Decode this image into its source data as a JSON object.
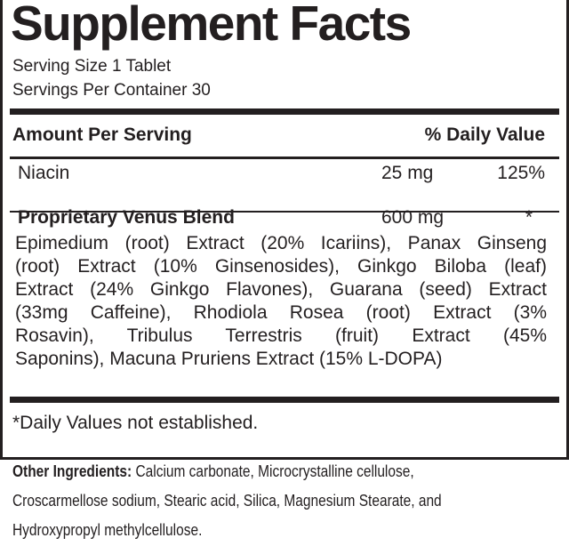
{
  "title": "Supplement Facts",
  "serving_size": "Serving Size 1 Tablet",
  "servings_per_container": "Servings Per Container 30",
  "header": {
    "amount": "Amount Per Serving",
    "dv": "% Daily Value"
  },
  "rows": [
    {
      "name": "Niacin",
      "amount": "25 mg",
      "dv": "125%"
    },
    {
      "name": "Proprietary Venus Blend",
      "amount": "600 mg",
      "dv": "*"
    }
  ],
  "blend_lines": [
    "Epimedium (root) Extract (20% Icariins), Panax Ginseng",
    "(root) Extract (10% Ginsenosides), Ginkgo Biloba (leaf)",
    "Extract (24% Ginkgo Flavones), Guarana (seed) Extract",
    "(33mg Caffeine), Rhodiola Rosea (root) Extract (3%",
    "Rosavin), Tribulus Terrestris (fruit) Extract (45%",
    "Saponins), Macuna Pruriens Extract (15% L-DOPA)"
  ],
  "footnote": "*Daily Values not established.",
  "other": {
    "label": "Other Ingredients:",
    "lines": [
      " Calcium carbonate, Microcrystalline cellulose,",
      "Croscarmellose sodium, Stearic acid, Silica, Magnesium Stearate, and",
      "Hydroxypropyl methylcellulose."
    ]
  }
}
